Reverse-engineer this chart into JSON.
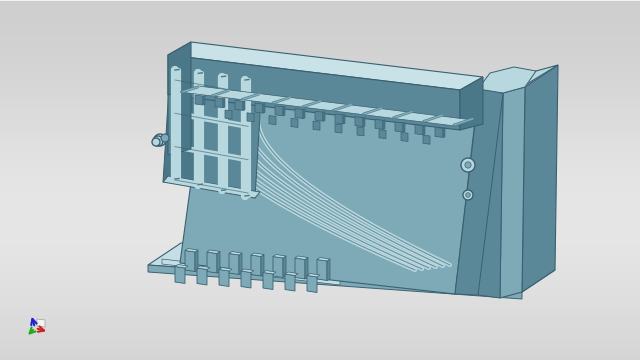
{
  "bg_gradient_top": "#b8b8b8",
  "bg_gradient_bottom": "#d5d5d5",
  "bg_gradient_center": "#dcdcdc",
  "lc": "#b8d8df",
  "mc": "#7eaab8",
  "dc": "#5a8898",
  "sc": "#4a7888",
  "dkc": "#3a6070",
  "edge": "#3a6070",
  "figsize": [
    6.4,
    3.6
  ],
  "dpi": 100
}
